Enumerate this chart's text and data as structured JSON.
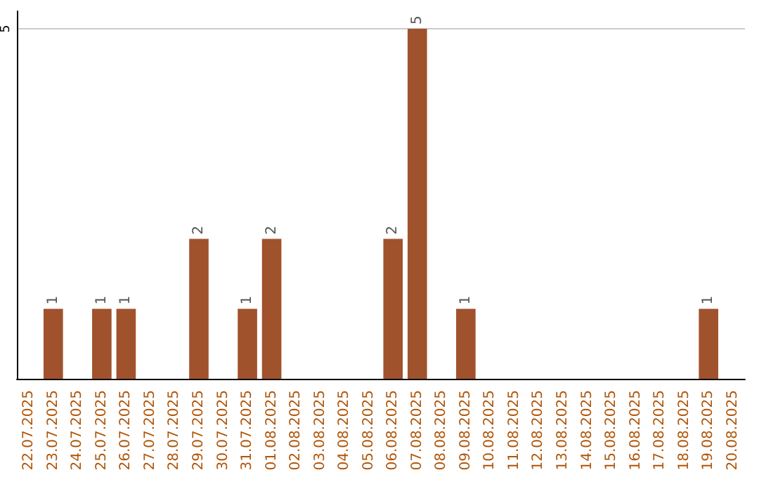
{
  "chart_data": {
    "type": "bar",
    "categories": [
      "22.07.2025",
      "23.07.2025",
      "24.07.2025",
      "25.07.2025",
      "26.07.2025",
      "27.07.2025",
      "28.07.2025",
      "29.07.2025",
      "30.07.2025",
      "31.07.2025",
      "01.08.2025",
      "02.08.2025",
      "03.08.2025",
      "04.08.2025",
      "05.08.2025",
      "06.08.2025",
      "07.08.2025",
      "08.08.2025",
      "09.08.2025",
      "10.08.2025",
      "11.08.2025",
      "12.08.2025",
      "13.08.2025",
      "14.08.2025",
      "15.08.2025",
      "16.08.2025",
      "17.08.2025",
      "18.08.2025",
      "19.08.2025",
      "20.08.2025"
    ],
    "values": [
      0,
      1,
      0,
      1,
      1,
      0,
      0,
      2,
      0,
      1,
      2,
      0,
      0,
      0,
      0,
      2,
      5,
      0,
      1,
      0,
      0,
      0,
      0,
      0,
      0,
      0,
      0,
      0,
      1,
      0
    ],
    "value_labels": [
      null,
      "1",
      null,
      "1",
      "1",
      null,
      null,
      "2",
      null,
      "1",
      "2",
      null,
      null,
      null,
      null,
      "2",
      "5",
      null,
      "1",
      null,
      null,
      null,
      null,
      null,
      null,
      null,
      null,
      null,
      "1",
      null
    ],
    "color": "#a0522d",
    "ylim": [
      0,
      5.25
    ],
    "yticks": [
      5
    ],
    "grid": "y"
  }
}
